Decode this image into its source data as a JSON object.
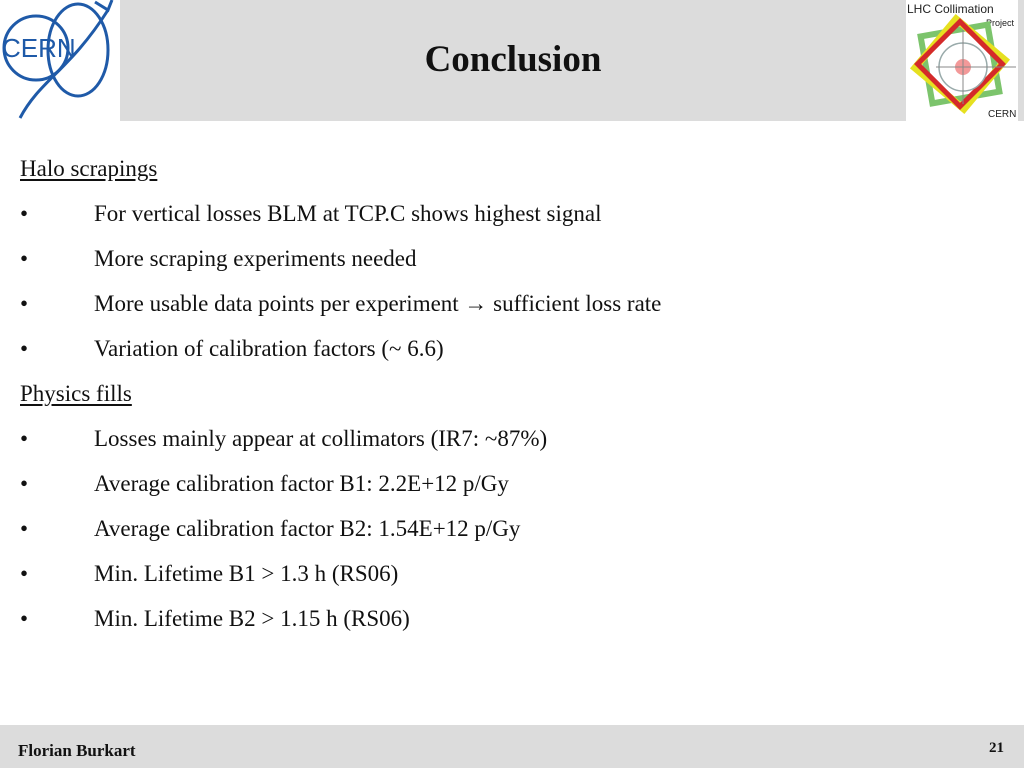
{
  "header": {
    "title": "Conclusion",
    "cern_logo_text": "CERN",
    "lhc_logo": {
      "line1": "LHC Collimation",
      "line2": "Project",
      "line3": "CERN"
    }
  },
  "sections": [
    {
      "heading": "Halo scrapings",
      "bullets": [
        "For vertical losses BLM at TCP.C shows highest signal",
        "More scraping experiments needed",
        "More usable data points per experiment  → sufficient loss rate",
        "Variation of  calibration factors (~ 6.6)"
      ]
    },
    {
      "heading": "Physics fills",
      "bullets": [
        "Losses mainly appear at collimators  (IR7: ~87%)",
        "Average calibration factor B1: 2.2E+12 p/Gy",
        "Average calibration factor B2: 1.54E+12 p/Gy",
        "Min. Lifetime B1  > 1.3 h (RS06)",
        "Min. Lifetime B2  > 1.15 h (RS06)"
      ]
    }
  ],
  "bullet_symbol": "•",
  "footer": {
    "author": "Florian Burkart",
    "page_number": "21"
  },
  "colors": {
    "header_background": "#dcdcdc",
    "cern_blue": "#1f5aa8",
    "lhc_red": "#d42a2a",
    "lhc_yellow": "#e6e020",
    "lhc_green": "#7cc46c"
  }
}
